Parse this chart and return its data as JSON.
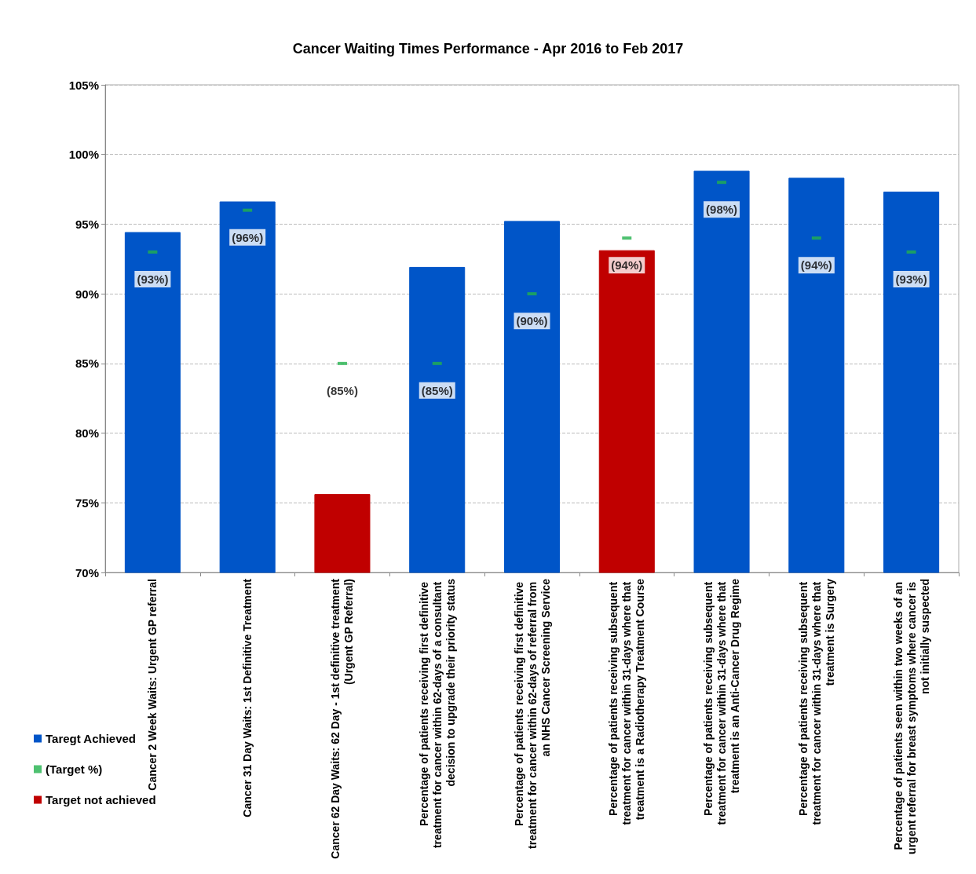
{
  "chart_data": {
    "type": "bar",
    "title": "Cancer Waiting Times Performance - Apr 2016 to Feb 2017",
    "categories": [
      "Cancer 2 Week Waits: Urgent GP referral",
      "Cancer 31 Day Waits: 1st Definitive Treatment",
      "Cancer 62 Day Waits: 62 Day - 1st definitive treatment (Urgent GP Referral)",
      "Percentage of patients receiving first definitive treatment for cancer within 62-days of a consultant decision to upgrade their priority status",
      "Percentage of patients receiving first definitive treatment for cancer within 62-days of referral from an NHS Cancer Screening Service",
      "Percentage of patients receiving subsequent treatment for cancer within 31-days where that treatment is a Radiotherapy Treatment Course",
      "Percentage of patients receiving subsequent treatment for cancer within 31-days where that treatment is an Anti-Cancer Drug Regime",
      "Percentage of patients receiving subsequent treatment for cancer within 31-days where that treatment is Surgery",
      "Percentage of patients seen within two weeks of an urgent referral for breast symptoms where cancer is not initially suspected"
    ],
    "series": [
      {
        "name": "Taregt Achieved",
        "type": "bar",
        "color": "#0055c8",
        "values": [
          94.4,
          96.6,
          null,
          91.9,
          95.2,
          null,
          98.8,
          98.3,
          97.3
        ]
      },
      {
        "name": "(Target %)",
        "type": "scatter",
        "color": "#22b14c",
        "values": [
          93,
          96,
          85,
          85,
          90,
          94,
          98,
          94,
          93
        ],
        "value_labels": [
          "(93%)",
          "(96%)",
          "(85%)",
          "(85%)",
          "(90%)",
          "(94%)",
          "(98%)",
          "(94%)",
          "(93%)"
        ]
      },
      {
        "name": "Target not achieved",
        "type": "bar",
        "color": "#c00000",
        "values": [
          null,
          null,
          75.6,
          null,
          null,
          93.1,
          null,
          null,
          null
        ]
      }
    ],
    "stacked": true,
    "ylim": [
      70,
      105
    ],
    "yticks": [
      {
        "value": 70,
        "label": "70%"
      },
      {
        "value": 75,
        "label": "75%"
      },
      {
        "value": 80,
        "label": "80%"
      },
      {
        "value": 85,
        "label": "85%"
      },
      {
        "value": 90,
        "label": "90%"
      },
      {
        "value": 95,
        "label": "95%"
      },
      {
        "value": 100,
        "label": "100%"
      },
      {
        "value": 105,
        "label": "105%"
      }
    ],
    "grid": "y",
    "legend": "bottom left"
  }
}
